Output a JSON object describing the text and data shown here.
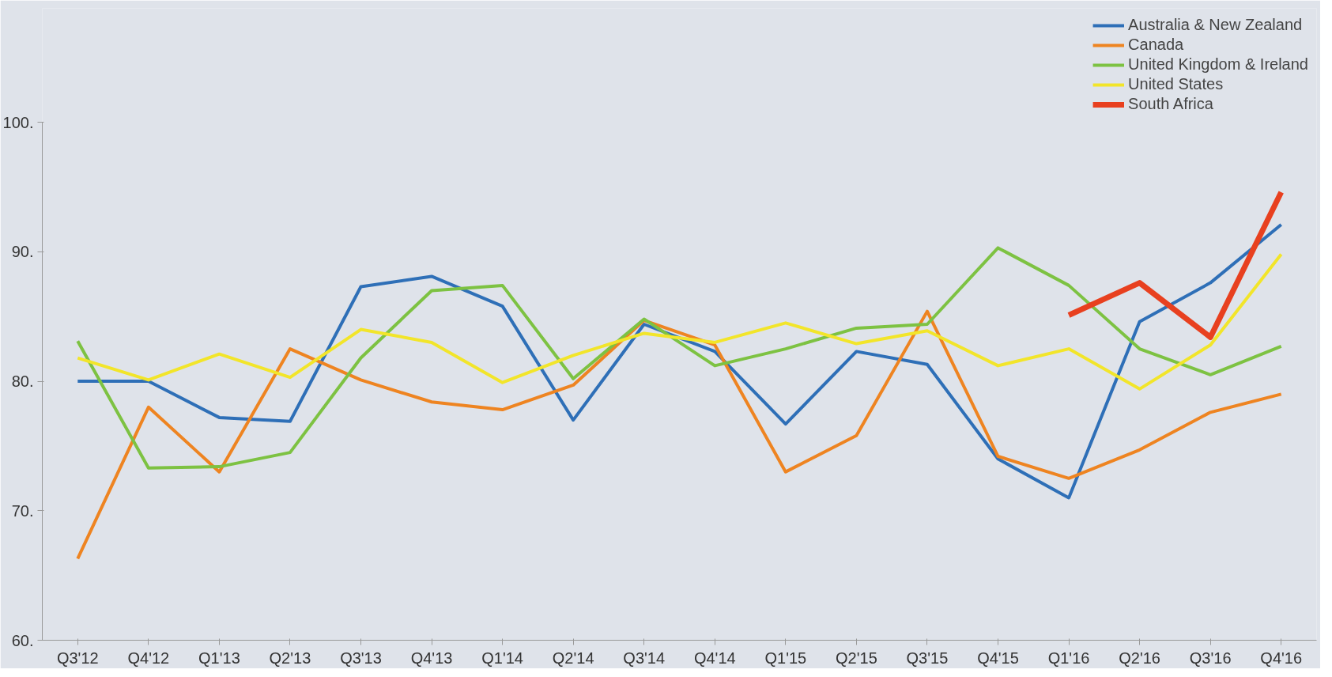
{
  "chart_data": {
    "type": "line",
    "categories": [
      "Q3'12",
      "Q4'12",
      "Q1'13",
      "Q2'13",
      "Q3'13",
      "Q4'13",
      "Q1'14",
      "Q2'14",
      "Q3'14",
      "Q4'14",
      "Q1'15",
      "Q2'15",
      "Q3'15",
      "Q4'15",
      "Q1'16",
      "Q2'16",
      "Q3'16",
      "Q4'16"
    ],
    "series": [
      {
        "name": "Australia & New Zealand",
        "color": "#2e6fb7",
        "values": [
          80.0,
          80.0,
          77.2,
          76.9,
          87.3,
          88.1,
          85.8,
          77.0,
          84.4,
          82.3,
          76.7,
          82.3,
          81.3,
          74.0,
          71.0,
          84.6,
          87.6,
          92.1
        ]
      },
      {
        "name": "Canada",
        "color": "#ee8421",
        "values": [
          66.3,
          78.0,
          73.0,
          82.5,
          80.1,
          78.4,
          77.8,
          79.7,
          84.7,
          82.8,
          73.0,
          75.8,
          85.4,
          74.2,
          72.5,
          74.7,
          77.6,
          79.0
        ]
      },
      {
        "name": "United Kingdom & Ireland",
        "color": "#7dc242",
        "values": [
          83.1,
          73.3,
          73.4,
          74.5,
          81.8,
          87.0,
          87.4,
          80.2,
          84.8,
          81.2,
          82.5,
          84.1,
          84.4,
          90.3,
          87.4,
          82.5,
          80.5,
          82.7
        ]
      },
      {
        "name": "United States",
        "color": "#f2e52a",
        "values": [
          81.8,
          80.1,
          82.1,
          80.3,
          84.0,
          83.0,
          79.9,
          82.0,
          83.7,
          83.0,
          84.5,
          82.9,
          83.9,
          81.2,
          82.5,
          79.4,
          82.8,
          89.8
        ]
      },
      {
        "name": "South Africa",
        "color": "#e8401f",
        "values": [
          null,
          null,
          null,
          null,
          null,
          null,
          null,
          null,
          null,
          null,
          null,
          null,
          null,
          null,
          85.1,
          87.6,
          83.4,
          94.6
        ]
      }
    ],
    "ylim": [
      60,
      100
    ],
    "yticks": [
      {
        "value": 60,
        "label": "60."
      },
      {
        "value": 70,
        "label": "70."
      },
      {
        "value": 80,
        "label": "80."
      },
      {
        "value": 90,
        "label": "90."
      },
      {
        "value": 100,
        "label": "100."
      }
    ],
    "grid": false,
    "legend": "top right",
    "marker": "none",
    "line_style": "solid"
  }
}
